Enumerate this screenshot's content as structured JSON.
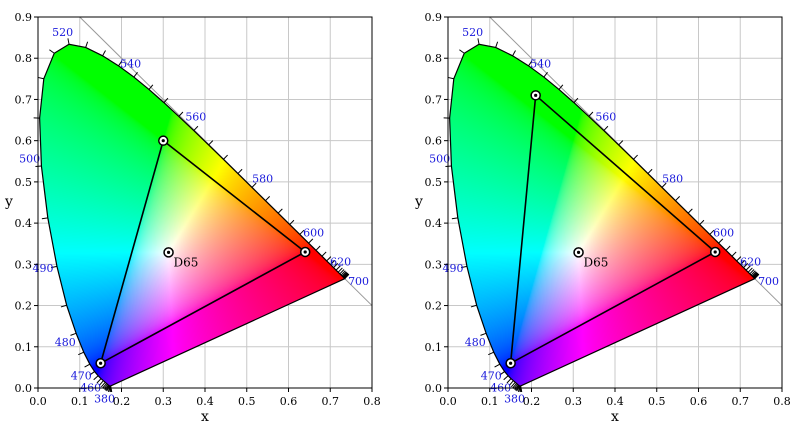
{
  "chart_data": [
    {
      "type": "scatter",
      "title": "",
      "xlabel": "x",
      "ylabel": "y",
      "xlim": [
        0.0,
        0.8
      ],
      "ylim": [
        0.0,
        0.9
      ],
      "xticks": [
        "0.0",
        "0.1",
        "0.2",
        "0.3",
        "0.4",
        "0.5",
        "0.6",
        "0.7",
        "0.8"
      ],
      "yticks": [
        "0.0",
        "0.1",
        "0.2",
        "0.3",
        "0.4",
        "0.5",
        "0.6",
        "0.7",
        "0.8",
        "0.9"
      ],
      "grid": true,
      "spectral_locus": [
        [
          0.1741,
          0.005
        ],
        [
          0.1738,
          0.0049
        ],
        [
          0.1736,
          0.0049
        ],
        [
          0.1733,
          0.0048
        ],
        [
          0.173,
          0.0048
        ],
        [
          0.1726,
          0.0048
        ],
        [
          0.1721,
          0.0048
        ],
        [
          0.1714,
          0.0051
        ],
        [
          0.1703,
          0.0058
        ],
        [
          0.1689,
          0.0069
        ],
        [
          0.1669,
          0.0086
        ],
        [
          0.1644,
          0.0109
        ],
        [
          0.1611,
          0.0138
        ],
        [
          0.1566,
          0.0177
        ],
        [
          0.151,
          0.0227
        ],
        [
          0.144,
          0.0297
        ],
        [
          0.1355,
          0.0399
        ],
        [
          0.1241,
          0.0578
        ],
        [
          0.1096,
          0.0868
        ],
        [
          0.0913,
          0.1327
        ],
        [
          0.0687,
          0.2007
        ],
        [
          0.0454,
          0.295
        ],
        [
          0.0235,
          0.4127
        ],
        [
          0.0082,
          0.5384
        ],
        [
          0.0039,
          0.6548
        ],
        [
          0.0139,
          0.7502
        ],
        [
          0.0389,
          0.812
        ],
        [
          0.0743,
          0.8338
        ],
        [
          0.1142,
          0.8262
        ],
        [
          0.1547,
          0.8059
        ],
        [
          0.1929,
          0.7816
        ],
        [
          0.2296,
          0.7543
        ],
        [
          0.2658,
          0.7243
        ],
        [
          0.3016,
          0.6923
        ],
        [
          0.3373,
          0.6589
        ],
        [
          0.3731,
          0.6245
        ],
        [
          0.4087,
          0.5896
        ],
        [
          0.4441,
          0.5547
        ],
        [
          0.4788,
          0.5202
        ],
        [
          0.5125,
          0.4866
        ],
        [
          0.5448,
          0.4544
        ],
        [
          0.5752,
          0.4242
        ],
        [
          0.6029,
          0.3965
        ],
        [
          0.627,
          0.3725
        ],
        [
          0.6482,
          0.3514
        ],
        [
          0.6658,
          0.334
        ],
        [
          0.6801,
          0.3197
        ],
        [
          0.6915,
          0.3083
        ],
        [
          0.7006,
          0.2993
        ],
        [
          0.7079,
          0.292
        ],
        [
          0.714,
          0.2859
        ],
        [
          0.719,
          0.2809
        ],
        [
          0.723,
          0.277
        ],
        [
          0.726,
          0.274
        ],
        [
          0.7283,
          0.2717
        ],
        [
          0.73,
          0.27
        ],
        [
          0.7311,
          0.2689
        ],
        [
          0.732,
          0.268
        ],
        [
          0.7327,
          0.2673
        ],
        [
          0.7334,
          0.2666
        ],
        [
          0.734,
          0.266
        ],
        [
          0.7344,
          0.2656
        ],
        [
          0.7346,
          0.2654
        ],
        [
          0.7347,
          0.2653
        ]
      ],
      "wavelength_labels": [
        {
          "text": "380",
          "x": 0.1741,
          "y": 0.005
        },
        {
          "text": "460",
          "x": 0.144,
          "y": 0.0297
        },
        {
          "text": "470",
          "x": 0.1241,
          "y": 0.0578
        },
        {
          "text": "480",
          "x": 0.0913,
          "y": 0.1327
        },
        {
          "text": "490",
          "x": 0.0454,
          "y": 0.295
        },
        {
          "text": "500",
          "x": 0.0082,
          "y": 0.5384
        },
        {
          "text": "520",
          "x": 0.0743,
          "y": 0.8338
        },
        {
          "text": "540",
          "x": 0.2296,
          "y": 0.7543
        },
        {
          "text": "560",
          "x": 0.3731,
          "y": 0.6245
        },
        {
          "text": "580",
          "x": 0.5125,
          "y": 0.4866
        },
        {
          "text": "600",
          "x": 0.627,
          "y": 0.3725
        },
        {
          "text": "620",
          "x": 0.6915,
          "y": 0.3083
        },
        {
          "text": "700",
          "x": 0.7347,
          "y": 0.2653
        }
      ],
      "gamut": [
        [
          0.64,
          0.33
        ],
        [
          0.3,
          0.6
        ],
        [
          0.15,
          0.06
        ]
      ],
      "white_point": {
        "name": "D65",
        "x": 0.3127,
        "y": 0.329
      }
    },
    {
      "type": "scatter",
      "title": "",
      "xlabel": "x",
      "ylabel": "y",
      "xlim": [
        0.0,
        0.8
      ],
      "ylim": [
        0.0,
        0.9
      ],
      "xticks": [
        "0.0",
        "0.1",
        "0.2",
        "0.3",
        "0.4",
        "0.5",
        "0.6",
        "0.7",
        "0.8"
      ],
      "yticks": [
        "0.0",
        "0.1",
        "0.2",
        "0.3",
        "0.4",
        "0.5",
        "0.6",
        "0.7",
        "0.8",
        "0.9"
      ],
      "grid": true,
      "spectral_locus": [
        [
          0.1741,
          0.005
        ],
        [
          0.1738,
          0.0049
        ],
        [
          0.1736,
          0.0049
        ],
        [
          0.1733,
          0.0048
        ],
        [
          0.173,
          0.0048
        ],
        [
          0.1726,
          0.0048
        ],
        [
          0.1721,
          0.0048
        ],
        [
          0.1714,
          0.0051
        ],
        [
          0.1703,
          0.0058
        ],
        [
          0.1689,
          0.0069
        ],
        [
          0.1669,
          0.0086
        ],
        [
          0.1644,
          0.0109
        ],
        [
          0.1611,
          0.0138
        ],
        [
          0.1566,
          0.0177
        ],
        [
          0.151,
          0.0227
        ],
        [
          0.144,
          0.0297
        ],
        [
          0.1355,
          0.0399
        ],
        [
          0.1241,
          0.0578
        ],
        [
          0.1096,
          0.0868
        ],
        [
          0.0913,
          0.1327
        ],
        [
          0.0687,
          0.2007
        ],
        [
          0.0454,
          0.295
        ],
        [
          0.0235,
          0.4127
        ],
        [
          0.0082,
          0.5384
        ],
        [
          0.0039,
          0.6548
        ],
        [
          0.0139,
          0.7502
        ],
        [
          0.0389,
          0.812
        ],
        [
          0.0743,
          0.8338
        ],
        [
          0.1142,
          0.8262
        ],
        [
          0.1547,
          0.8059
        ],
        [
          0.1929,
          0.7816
        ],
        [
          0.2296,
          0.7543
        ],
        [
          0.2658,
          0.7243
        ],
        [
          0.3016,
          0.6923
        ],
        [
          0.3373,
          0.6589
        ],
        [
          0.3731,
          0.6245
        ],
        [
          0.4087,
          0.5896
        ],
        [
          0.4441,
          0.5547
        ],
        [
          0.4788,
          0.5202
        ],
        [
          0.5125,
          0.4866
        ],
        [
          0.5448,
          0.4544
        ],
        [
          0.5752,
          0.4242
        ],
        [
          0.6029,
          0.3965
        ],
        [
          0.627,
          0.3725
        ],
        [
          0.6482,
          0.3514
        ],
        [
          0.6658,
          0.334
        ],
        [
          0.6801,
          0.3197
        ],
        [
          0.6915,
          0.3083
        ],
        [
          0.7006,
          0.2993
        ],
        [
          0.7079,
          0.292
        ],
        [
          0.714,
          0.2859
        ],
        [
          0.719,
          0.2809
        ],
        [
          0.723,
          0.277
        ],
        [
          0.726,
          0.274
        ],
        [
          0.7283,
          0.2717
        ],
        [
          0.73,
          0.27
        ],
        [
          0.7311,
          0.2689
        ],
        [
          0.732,
          0.268
        ],
        [
          0.7327,
          0.2673
        ],
        [
          0.7334,
          0.2666
        ],
        [
          0.734,
          0.266
        ],
        [
          0.7344,
          0.2656
        ],
        [
          0.7346,
          0.2654
        ],
        [
          0.7347,
          0.2653
        ]
      ],
      "wavelength_labels": [
        {
          "text": "380",
          "x": 0.1741,
          "y": 0.005
        },
        {
          "text": "460",
          "x": 0.144,
          "y": 0.0297
        },
        {
          "text": "470",
          "x": 0.1241,
          "y": 0.0578
        },
        {
          "text": "480",
          "x": 0.0913,
          "y": 0.1327
        },
        {
          "text": "490",
          "x": 0.0454,
          "y": 0.295
        },
        {
          "text": "500",
          "x": 0.0082,
          "y": 0.5384
        },
        {
          "text": "520",
          "x": 0.0743,
          "y": 0.8338
        },
        {
          "text": "540",
          "x": 0.2296,
          "y": 0.7543
        },
        {
          "text": "560",
          "x": 0.3731,
          "y": 0.6245
        },
        {
          "text": "580",
          "x": 0.5125,
          "y": 0.4866
        },
        {
          "text": "600",
          "x": 0.627,
          "y": 0.3725
        },
        {
          "text": "620",
          "x": 0.6915,
          "y": 0.3083
        },
        {
          "text": "700",
          "x": 0.7347,
          "y": 0.2653
        }
      ],
      "gamut": [
        [
          0.64,
          0.33
        ],
        [
          0.21,
          0.71
        ],
        [
          0.15,
          0.06
        ]
      ],
      "white_point": {
        "name": "D65",
        "x": 0.3127,
        "y": 0.329
      }
    }
  ],
  "colors": {
    "wavelength_label": "#1a1adb",
    "gamut_line": "#000000",
    "grid": "#c8c8c8",
    "purple_line_guide": "#999999"
  }
}
